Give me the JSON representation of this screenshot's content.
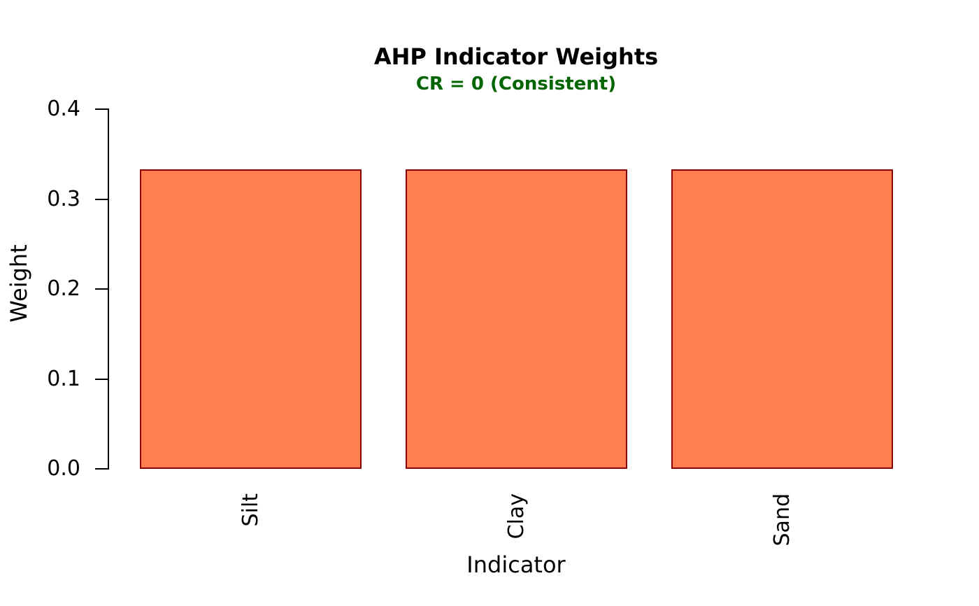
{
  "figure": {
    "background_color": "#ffffff",
    "text_color": "#000000",
    "axis_color": "#000000"
  },
  "chart_data": {
    "type": "bar",
    "title": "AHP Indicator Weights",
    "subtitle": "CR = 0 (Consistent)",
    "subtitle_color": "#006400",
    "xlabel": "Indicator",
    "ylabel": "Weight",
    "categories": [
      "Silt",
      "Clay",
      "Sand"
    ],
    "values": [
      0.3333,
      0.3333,
      0.3333
    ],
    "ylim": [
      0,
      0.4
    ],
    "yticks": [
      0.0,
      0.1,
      0.2,
      0.3,
      0.4
    ],
    "ytick_labels": [
      "0.0",
      "0.1",
      "0.2",
      "0.3",
      "0.4"
    ],
    "bar_fill_color": "#FF7F50",
    "bar_border_color": "#8B0000",
    "grid": false,
    "legend": false,
    "x_labels_rotated_degrees": 90
  }
}
